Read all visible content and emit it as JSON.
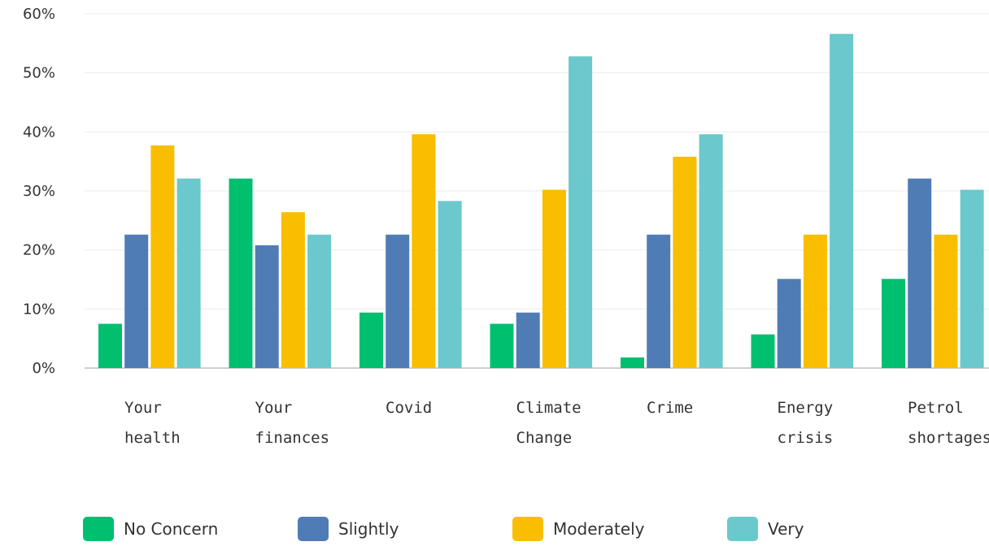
{
  "chart_data": {
    "type": "bar",
    "categories": [
      [
        "Your",
        "health"
      ],
      [
        "Your",
        "finances"
      ],
      [
        "Covid"
      ],
      [
        "Climate",
        "Change"
      ],
      [
        "Crime"
      ],
      [
        "Energy",
        "crisis"
      ],
      [
        "Petrol",
        "shortages"
      ]
    ],
    "series": [
      {
        "name": "No Concern",
        "color": "#00bf6f",
        "values": [
          7.5,
          32.1,
          9.4,
          7.5,
          1.8,
          5.7,
          15.1
        ]
      },
      {
        "name": "Slightly",
        "color": "#507cb6",
        "values": [
          22.6,
          20.8,
          22.6,
          9.4,
          22.6,
          15.1,
          32.1
        ]
      },
      {
        "name": "Moderately",
        "color": "#f9be00",
        "values": [
          37.7,
          26.4,
          39.6,
          30.2,
          35.8,
          22.6,
          22.6
        ]
      },
      {
        "name": "Very",
        "color": "#6bc8cd",
        "values": [
          32.1,
          22.6,
          28.3,
          52.8,
          39.6,
          56.6,
          30.2
        ]
      }
    ],
    "yticks": [
      "0%",
      "10%",
      "20%",
      "30%",
      "40%",
      "50%",
      "60%"
    ],
    "ylim": [
      0,
      60
    ],
    "grid": true,
    "legend_position": "bottom",
    "title": "",
    "xlabel": "",
    "ylabel": ""
  }
}
